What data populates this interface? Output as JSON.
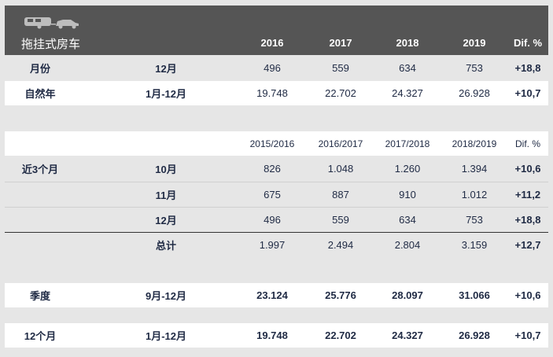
{
  "header": {
    "title": "拖挂式房车",
    "years": [
      "2016",
      "2017",
      "2018",
      "2019"
    ],
    "dif": "Dif. %"
  },
  "top_rows": [
    {
      "label": "月份",
      "period": "12月",
      "values": [
        "496",
        "559",
        "634",
        "753"
      ],
      "dif": "+18,8"
    },
    {
      "label": "自然年",
      "period": "1月-12月",
      "values": [
        "19.748",
        "22.702",
        "24.327",
        "26.928"
      ],
      "dif": "+10,7"
    }
  ],
  "section2": {
    "header": [
      "2015/2016",
      "2016/2017",
      "2017/2018",
      "2018/2019"
    ],
    "dif": "Dif. %",
    "label": "近3个月",
    "rows": [
      {
        "period": "10月",
        "values": [
          "826",
          "1.048",
          "1.260",
          "1.394"
        ],
        "dif": "+10,6"
      },
      {
        "period": "11月",
        "values": [
          "675",
          "887",
          "910",
          "1.012"
        ],
        "dif": "+11,2"
      },
      {
        "period": "12月",
        "values": [
          "496",
          "559",
          "634",
          "753"
        ],
        "dif": "+18,8"
      }
    ],
    "total": {
      "period": "总计",
      "values": [
        "1.997",
        "2.494",
        "2.804",
        "3.159"
      ],
      "dif": "+12,7"
    }
  },
  "quarter": {
    "label": "季度",
    "period": "9月-12月",
    "values": [
      "23.124",
      "25.776",
      "28.097",
      "31.066"
    ],
    "dif": "+10,6"
  },
  "twelve": {
    "label": "12个月",
    "period": "1月-12月",
    "values": [
      "19.748",
      "22.702",
      "24.327",
      "26.928"
    ],
    "dif": "+10,7"
  }
}
